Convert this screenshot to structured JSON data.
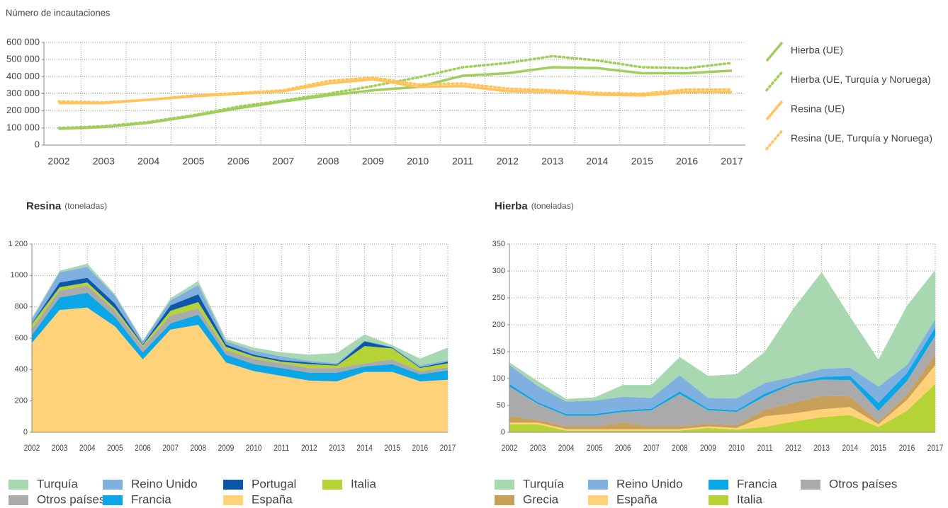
{
  "chart_data": [
    {
      "type": "line",
      "ylabel": "Número de incautaciones",
      "categories": [
        "2002",
        "2003",
        "2004",
        "2005",
        "2006",
        "2007",
        "2008",
        "2009",
        "2010",
        "2011",
        "2012",
        "2013",
        "2014",
        "2015",
        "2016",
        "2017"
      ],
      "ylim": [
        0,
        600000
      ],
      "yticks": [
        0,
        {
          "value": 100000,
          "label": "100 000"
        },
        {
          "value": 200000,
          "label": "200 000"
        },
        {
          "value": 300000,
          "label": "300 000"
        },
        {
          "value": 400000,
          "label": "400 000"
        },
        {
          "value": 500000,
          "label": "500 000"
        },
        {
          "value": 600000,
          "label": "600 000"
        }
      ],
      "grid": true,
      "legend": "right",
      "series": [
        {
          "name": "Hierba (UE)",
          "color": "#9fce5a",
          "line_style": "solid",
          "values": [
            95000,
            105000,
            130000,
            170000,
            215000,
            255000,
            290000,
            320000,
            340000,
            405000,
            420000,
            455000,
            450000,
            420000,
            420000,
            435000
          ]
        },
        {
          "name": "Hierba (UE, Turquía y Noruega)",
          "color": "#9fce5a",
          "line_style": "dotted",
          "values": [
            100000,
            110000,
            135000,
            175000,
            225000,
            260000,
            300000,
            345000,
            395000,
            455000,
            480000,
            520000,
            495000,
            455000,
            450000,
            480000
          ]
        },
        {
          "name": "Resina (UE)",
          "color": "#ffc35a",
          "line_style": "solid",
          "values": [
            245000,
            245000,
            265000,
            285000,
            300000,
            315000,
            360000,
            385000,
            340000,
            345000,
            315000,
            310000,
            295000,
            290000,
            310000,
            310000
          ]
        },
        {
          "name": "Resina (UE, Turquía y Noruega)",
          "color": "#ffc35a",
          "line_style": "dotted",
          "values": [
            255000,
            250000,
            265000,
            290000,
            305000,
            320000,
            375000,
            395000,
            355000,
            360000,
            330000,
            320000,
            305000,
            300000,
            325000,
            325000
          ]
        }
      ]
    },
    {
      "type": "stacked_area",
      "title": "Resina",
      "unit": "(toneladas)",
      "categories": [
        "2002",
        "2003",
        "2004",
        "2005",
        "2006",
        "2007",
        "2008",
        "2009",
        "2010",
        "2011",
        "2012",
        "2013",
        "2014",
        "2015",
        "2016",
        "2017"
      ],
      "ylim": [
        0,
        1200
      ],
      "yticks": [
        0,
        200,
        400,
        600,
        800,
        1000,
        {
          "value": 1200,
          "label": "1 200"
        }
      ],
      "grid": true,
      "legend": "bottom",
      "series": [
        {
          "name": "España",
          "color": "#ffd27a",
          "values": [
            570,
            780,
            795,
            675,
            465,
            655,
            685,
            445,
            390,
            360,
            330,
            325,
            385,
            385,
            325,
            335
          ]
        },
        {
          "name": "Francia",
          "color": "#0aa6e6",
          "values": [
            50,
            80,
            95,
            60,
            45,
            40,
            65,
            50,
            45,
            50,
            50,
            55,
            35,
            50,
            45,
            60
          ]
        },
        {
          "name": "Otros países",
          "color": "#aaaaaa",
          "values": [
            40,
            45,
            45,
            40,
            35,
            50,
            40,
            30,
            35,
            30,
            30,
            30,
            20,
            30,
            20,
            20
          ]
        },
        {
          "name": "Italia",
          "color": "#b5d334",
          "values": [
            30,
            20,
            20,
            15,
            10,
            30,
            40,
            20,
            15,
            10,
            25,
            15,
            110,
            70,
            20,
            25
          ]
        },
        {
          "name": "Portugal",
          "color": "#0d57a8",
          "values": [
            5,
            30,
            30,
            30,
            5,
            35,
            50,
            15,
            10,
            10,
            10,
            5,
            30,
            5,
            5,
            10
          ]
        },
        {
          "name": "Reino Unido",
          "color": "#7fb0e0",
          "values": [
            25,
            65,
            70,
            50,
            20,
            30,
            60,
            20,
            25,
            25,
            10,
            10,
            5,
            5,
            10,
            10
          ]
        },
        {
          "name": "Turquía",
          "color": "#a8d8b0",
          "values": [
            10,
            10,
            20,
            10,
            5,
            15,
            25,
            15,
            20,
            25,
            40,
            65,
            40,
            10,
            45,
            80
          ]
        }
      ]
    },
    {
      "type": "stacked_area",
      "title": "Hierba",
      "unit": "(toneladas)",
      "categories": [
        "2002",
        "2003",
        "2004",
        "2005",
        "2006",
        "2007",
        "2008",
        "2009",
        "2010",
        "2011",
        "2012",
        "2013",
        "2014",
        "2015",
        "2016",
        "2017"
      ],
      "ylim": [
        0,
        350
      ],
      "yticks": [
        0,
        50,
        100,
        150,
        200,
        250,
        300,
        350
      ],
      "grid": true,
      "legend": "bottom",
      "series": [
        {
          "name": "Italia",
          "color": "#b5d334",
          "values": [
            15,
            15,
            3,
            3,
            3,
            3,
            3,
            8,
            5,
            10,
            20,
            28,
            32,
            10,
            40,
            90
          ]
        },
        {
          "name": "España",
          "color": "#ffd27a",
          "values": [
            3,
            3,
            3,
            3,
            3,
            3,
            3,
            3,
            3,
            20,
            15,
            15,
            15,
            5,
            20,
            35
          ]
        },
        {
          "name": "Grecia",
          "color": "#c9a05a",
          "values": [
            12,
            5,
            5,
            5,
            12,
            5,
            5,
            5,
            5,
            12,
            20,
            25,
            20,
            5,
            10,
            20
          ]
        },
        {
          "name": "Otros países",
          "color": "#aaaaaa",
          "values": [
            55,
            30,
            20,
            20,
            20,
            30,
            60,
            25,
            25,
            25,
            35,
            30,
            30,
            20,
            25,
            35
          ]
        },
        {
          "name": "Francia",
          "color": "#0aa6e6",
          "values": [
            5,
            3,
            3,
            3,
            3,
            3,
            5,
            3,
            3,
            5,
            3,
            5,
            8,
            15,
            15,
            15
          ]
        },
        {
          "name": "Reino Unido",
          "color": "#7fb0e0",
          "values": [
            35,
            30,
            23,
            25,
            25,
            20,
            30,
            20,
            22,
            20,
            10,
            15,
            15,
            30,
            15,
            15
          ]
        },
        {
          "name": "Turquía",
          "color": "#a8d8b0",
          "values": [
            5,
            9,
            5,
            6,
            22,
            24,
            34,
            41,
            45,
            58,
            127,
            180,
            95,
            50,
            110,
            92
          ]
        }
      ]
    }
  ]
}
